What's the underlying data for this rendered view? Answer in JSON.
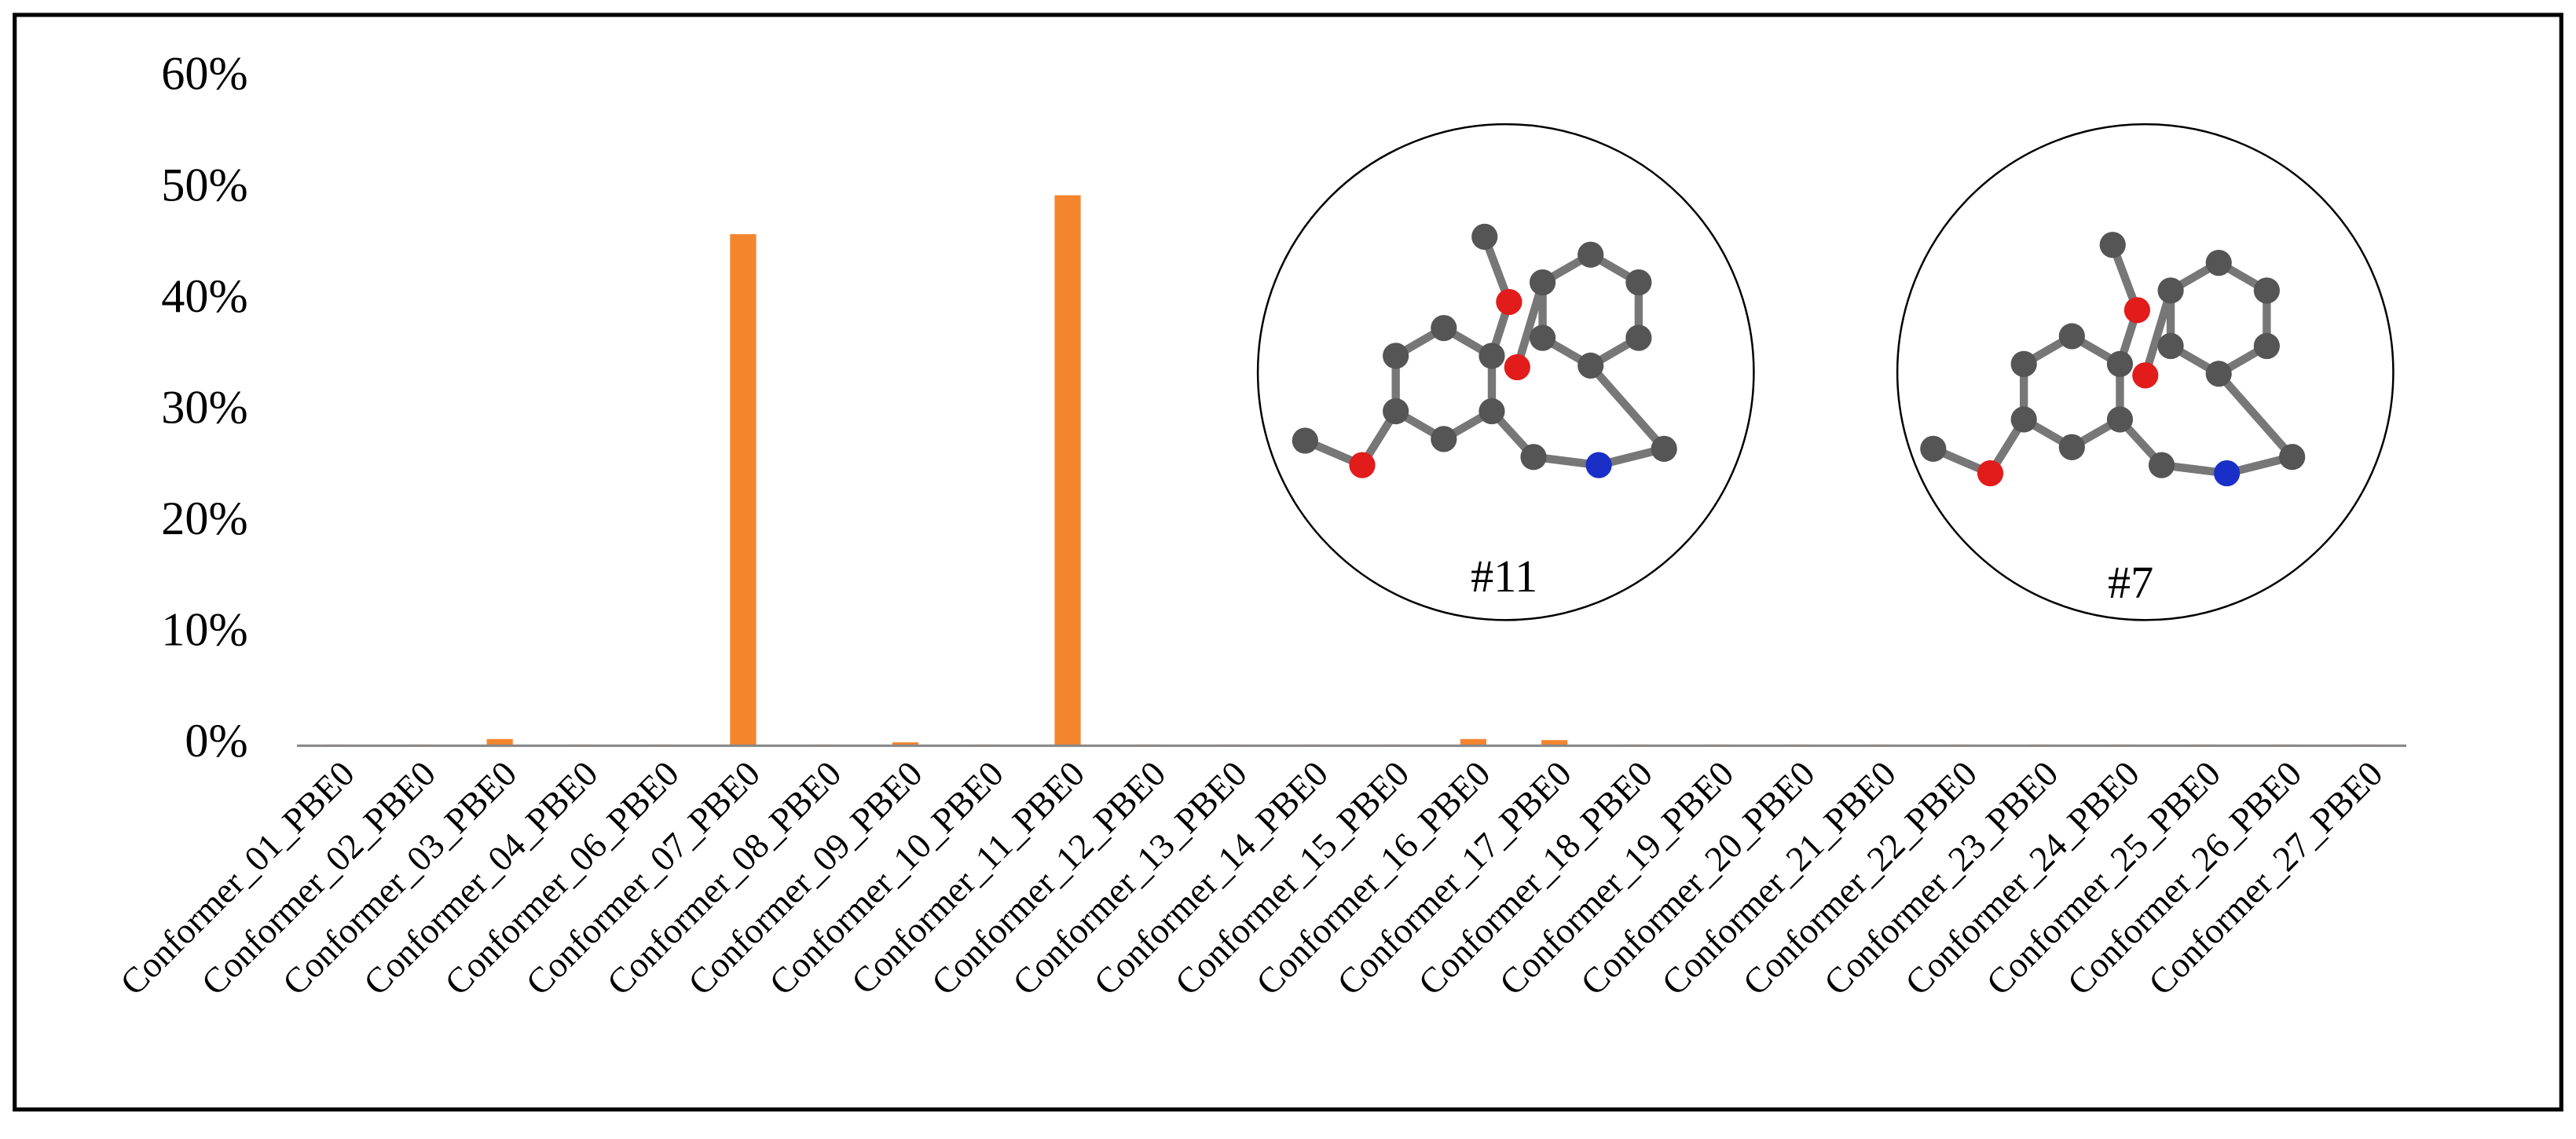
{
  "chart_data": {
    "type": "bar",
    "categories": [
      "Conformer_01_PBE0",
      "Conformer_02_PBE0",
      "Conformer_03_PBE0",
      "Conformer_04_PBE0",
      "Conformer_06_PBE0",
      "Conformer_07_PBE0",
      "Conformer_08_PBE0",
      "Conformer_09_PBE0",
      "Conformer_10_PBE0",
      "Conformer_11_PBE0",
      "Conformer_12_PBE0",
      "Conformer_13_PBE0",
      "Conformer_14_PBE0",
      "Conformer_15_PBE0",
      "Conformer_16_PBE0",
      "Conformer_17_PBE0",
      "Conformer_18_PBE0",
      "Conformer_19_PBE0",
      "Conformer_20_PBE0",
      "Conformer_21_PBE0",
      "Conformer_22_PBE0",
      "Conformer_23_PBE0",
      "Conformer_24_PBE0",
      "Conformer_25_PBE0",
      "Conformer_26_PBE0",
      "Conformer_27_PBE0"
    ],
    "values": [
      0.1,
      0.1,
      0.6,
      0.1,
      0.1,
      46,
      0.1,
      0.3,
      0.1,
      49.5,
      0.1,
      0.1,
      0.1,
      0.1,
      0.6,
      0.5,
      0.1,
      0.1,
      0.1,
      0.1,
      0.1,
      0.1,
      0.1,
      0.1,
      0.1,
      0.1
    ],
    "color": "#f5852d",
    "ylim": [
      0,
      60
    ],
    "yticks": [
      {
        "value": 0,
        "label": "0%"
      },
      {
        "value": 10,
        "label": "10%"
      },
      {
        "value": 20,
        "label": "20%"
      },
      {
        "value": 30,
        "label": "30%"
      },
      {
        "value": 40,
        "label": "40%"
      },
      {
        "value": 50,
        "label": "50%"
      },
      {
        "value": 60,
        "label": "60%"
      }
    ],
    "annotations": [
      "#11",
      "#7"
    ]
  }
}
